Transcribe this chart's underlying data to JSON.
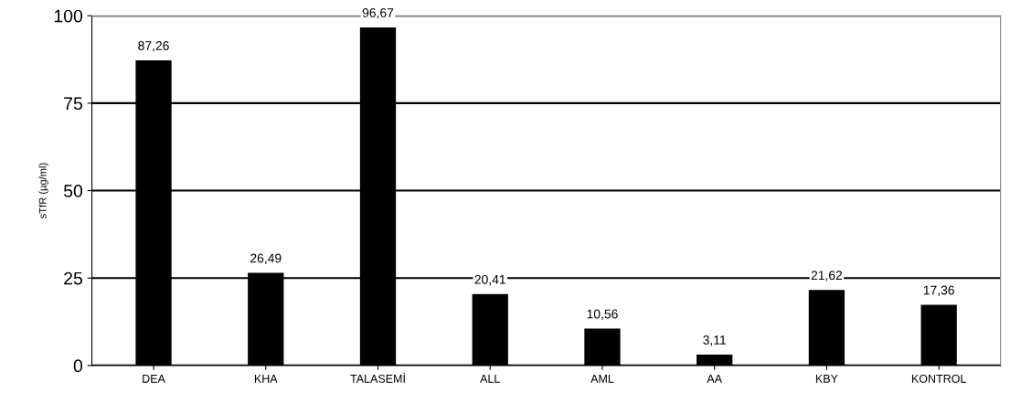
{
  "chart_data": {
    "type": "bar",
    "ylabel": "sTfR (µg/ml)",
    "categories": [
      "DEA",
      "KHA",
      "TALASEMİ",
      "ALL",
      "AML",
      "AA",
      "KBY",
      "KONTROL"
    ],
    "values": [
      87.26,
      26.49,
      96.67,
      20.41,
      10.56,
      3.11,
      21.62,
      17.36
    ],
    "value_labels": [
      "87,26",
      "26,49",
      "96,67",
      "20,41",
      "10,56",
      "3,11",
      "21,62",
      "17,36"
    ],
    "color": "#000000",
    "ylim": [
      0,
      100
    ],
    "yticks": [
      0,
      25,
      50,
      75,
      100
    ],
    "grid": "y",
    "legend": false
  }
}
